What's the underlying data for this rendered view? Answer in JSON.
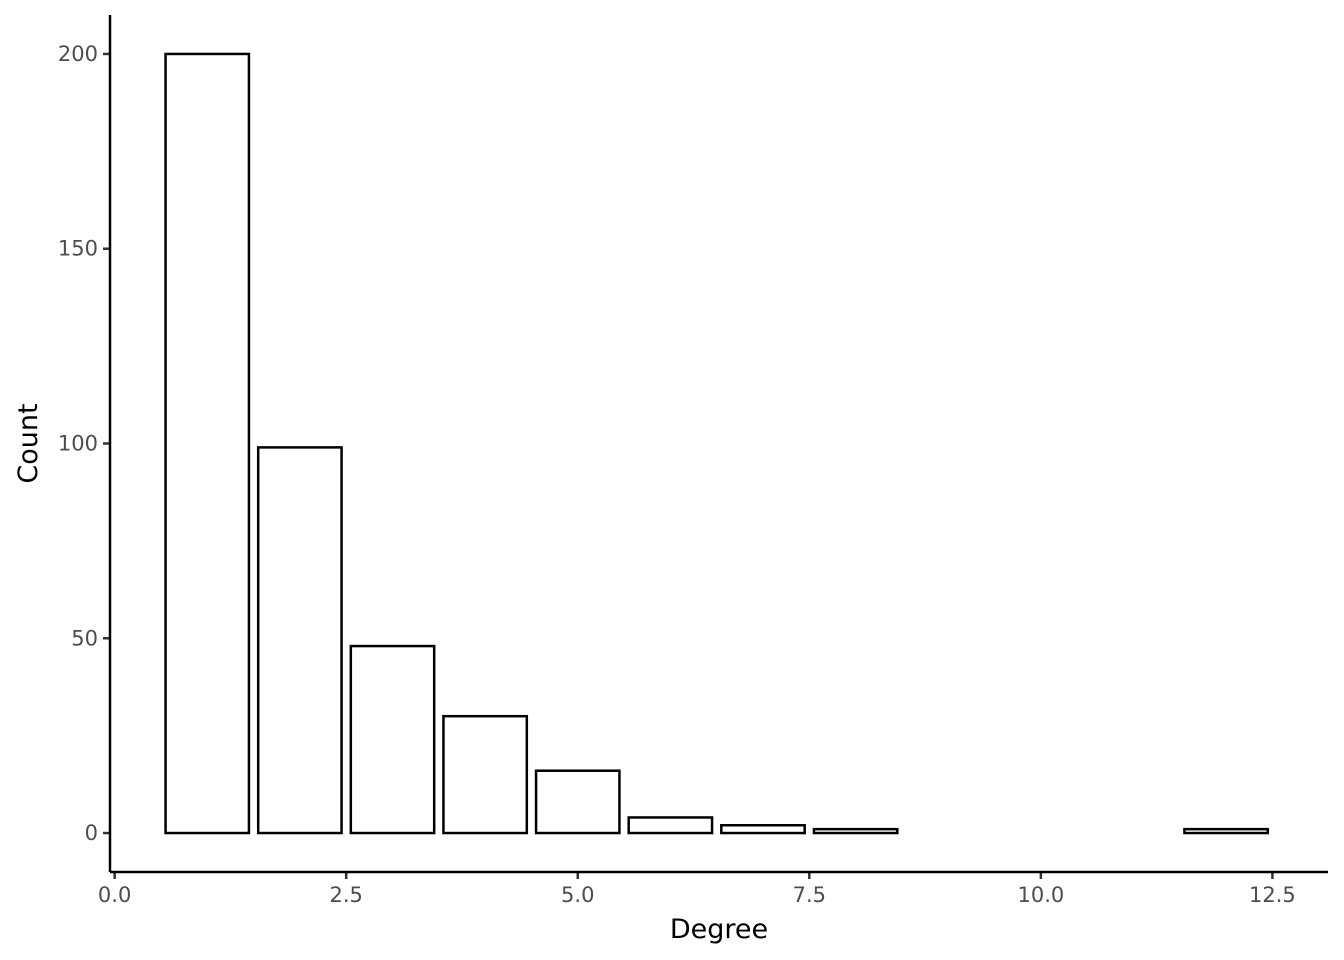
{
  "chart_data": {
    "type": "bar",
    "xlabel": "Degree",
    "ylabel": "Count",
    "x": [
      1,
      2,
      3,
      4,
      5,
      6,
      7,
      8,
      12
    ],
    "values": [
      200,
      99,
      48,
      30,
      16,
      4,
      2,
      1,
      1
    ],
    "bar_width": 0.9,
    "xlim": [
      -0.05,
      13.1
    ],
    "ylim": [
      -10,
      210
    ],
    "x_ticks": [
      0,
      2.5,
      5,
      7.5,
      10,
      12.5
    ],
    "x_tick_labels": [
      "0.0",
      "2.5",
      "5.0",
      "7.5",
      "10.0",
      "12.5"
    ],
    "y_ticks": [
      0,
      50,
      100,
      150,
      200
    ],
    "y_tick_labels": [
      "0",
      "50",
      "100",
      "150",
      "200"
    ],
    "grid": false,
    "bar_fill": "#ffffff",
    "bar_stroke": "#000000"
  }
}
